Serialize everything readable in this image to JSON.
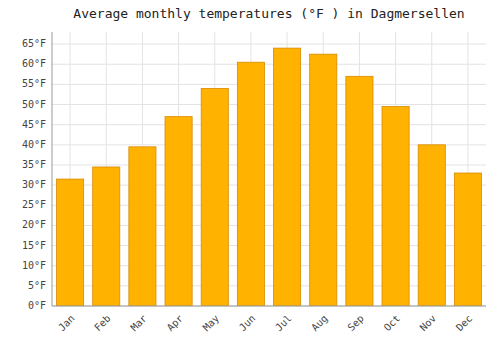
{
  "chart_data": {
    "type": "bar",
    "title": "Average monthly temperatures (°F ) in Dagmersellen",
    "categories": [
      "Jan",
      "Feb",
      "Mar",
      "Apr",
      "May",
      "Jun",
      "Jul",
      "Aug",
      "Sep",
      "Oct",
      "Nov",
      "Dec"
    ],
    "values": [
      31.5,
      34.5,
      39.5,
      47,
      54,
      60.5,
      64,
      62.5,
      57,
      49.5,
      40,
      33
    ],
    "color": "#FFB300",
    "ylim": [
      0,
      68
    ],
    "yticks": [
      {
        "value": 0,
        "label": "0°F"
      },
      {
        "value": 5,
        "label": "5°F"
      },
      {
        "value": 10,
        "label": "10°F"
      },
      {
        "value": 15,
        "label": "15°F"
      },
      {
        "value": 20,
        "label": "20°F"
      },
      {
        "value": 25,
        "label": "25°F"
      },
      {
        "value": 30,
        "label": "30°F"
      },
      {
        "value": 35,
        "label": "35°F"
      },
      {
        "value": 40,
        "label": "40°F"
      },
      {
        "value": 45,
        "label": "45°F"
      },
      {
        "value": 50,
        "label": "50°F"
      },
      {
        "value": 55,
        "label": "55°F"
      },
      {
        "value": 60,
        "label": "60°F"
      },
      {
        "value": 65,
        "label": "65°F"
      }
    ],
    "grid": true
  }
}
